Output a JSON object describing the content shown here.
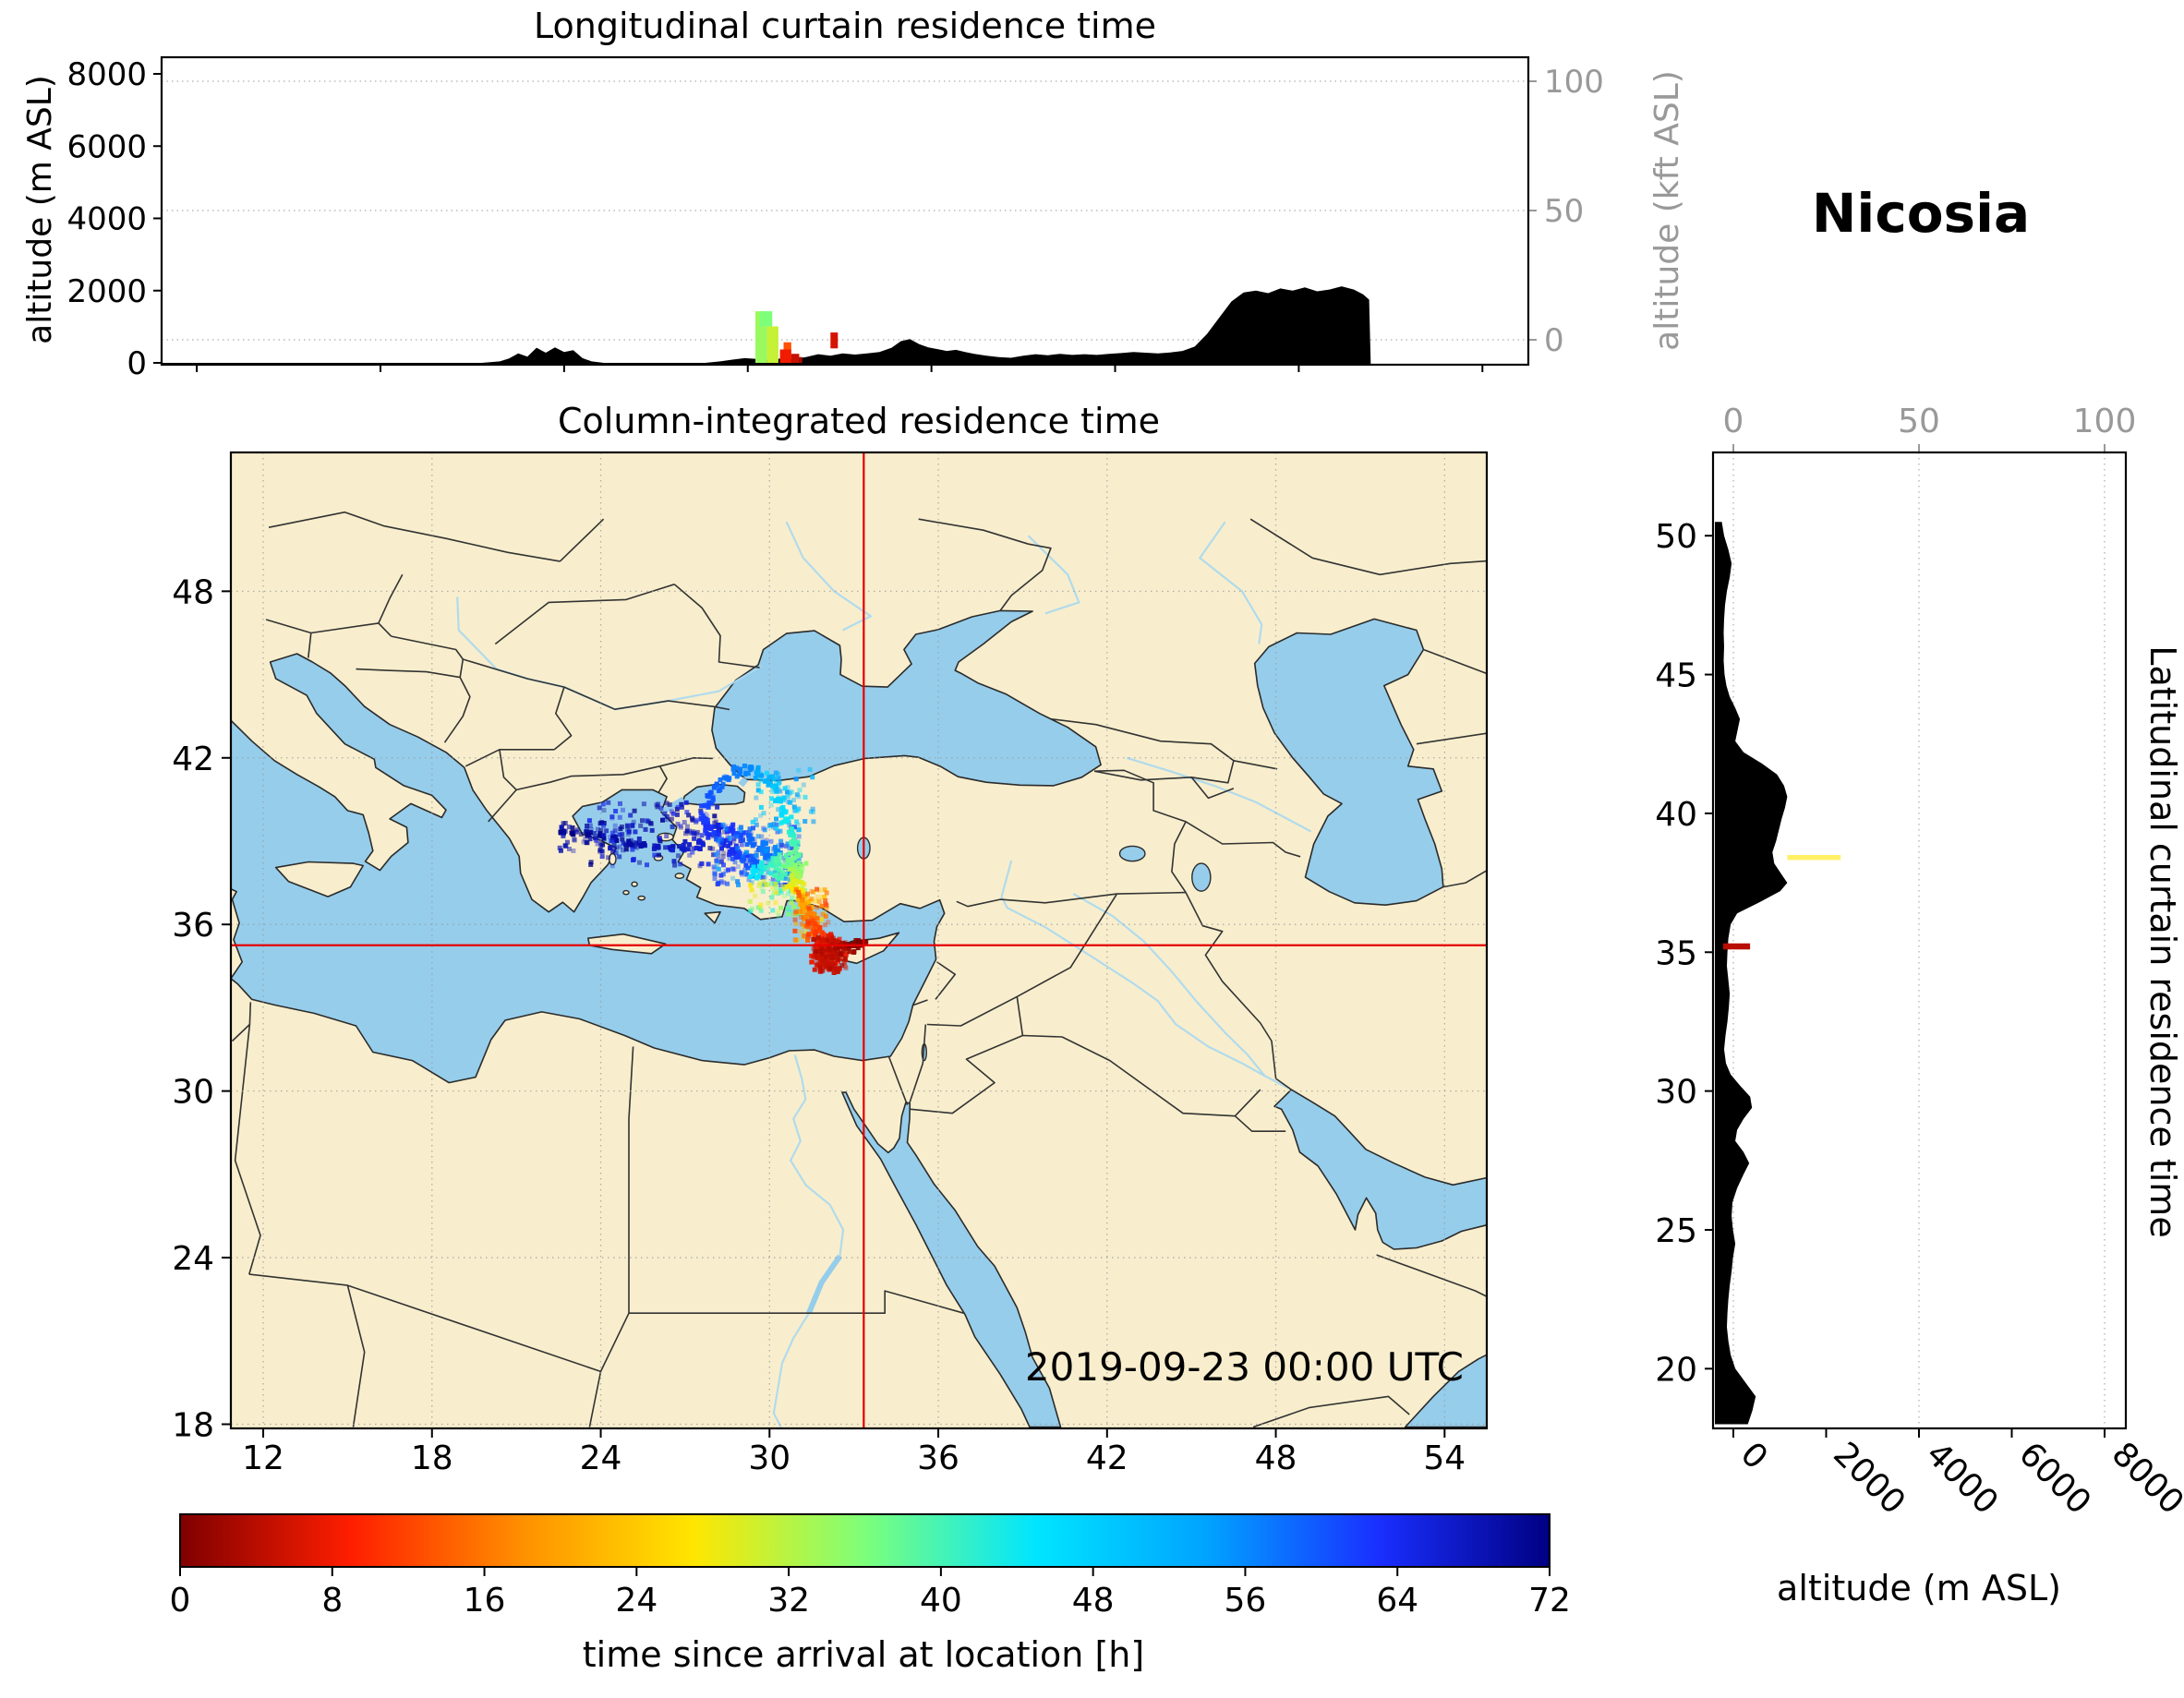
{
  "station": {
    "name": "Nicosia"
  },
  "chart_data": {
    "type": "multi-panel trajectory residence-time figure (map + longitudinal/latitudinal curtains + colorbar)",
    "timestamp": "2019-09-23 00:00 UTC",
    "receptor": {
      "name": "Nicosia",
      "lon": 33.35,
      "lat": 35.25
    },
    "colormap": {
      "label": "time since arrival at location [h]",
      "min": 0,
      "max": 72,
      "ticks": [
        0,
        8,
        16,
        24,
        32,
        40,
        48,
        56,
        64,
        72
      ],
      "stops": [
        [
          0,
          "#7f0000"
        ],
        [
          9,
          "#ff1e00"
        ],
        [
          18,
          "#ff9000"
        ],
        [
          27,
          "#ffe600"
        ],
        [
          36,
          "#7dff7a"
        ],
        [
          45,
          "#00e5ff"
        ],
        [
          54,
          "#00a3ff"
        ],
        [
          63,
          "#1a2fff"
        ],
        [
          72,
          "#000082"
        ]
      ]
    },
    "longitudinal_curtain": {
      "title": "Longitudinal curtain residence time",
      "ylabel": "altitude (m ASL)",
      "ylabel_right": "altitude (kft ASL)",
      "yticks": [
        0,
        2000,
        4000,
        6000,
        8000
      ],
      "yticks_right": [
        0,
        50,
        100
      ],
      "lon_range": [
        10.85,
        55.5
      ],
      "terrain": [
        [
          10.85,
          0
        ],
        [
          21.3,
          0
        ],
        [
          21.9,
          40
        ],
        [
          22.2,
          120
        ],
        [
          22.5,
          260
        ],
        [
          22.8,
          170
        ],
        [
          23.1,
          420
        ],
        [
          23.4,
          280
        ],
        [
          23.7,
          430
        ],
        [
          24.0,
          300
        ],
        [
          24.3,
          350
        ],
        [
          24.6,
          130
        ],
        [
          24.9,
          40
        ],
        [
          25.3,
          0
        ],
        [
          28.6,
          0
        ],
        [
          29.1,
          40
        ],
        [
          29.5,
          90
        ],
        [
          29.9,
          130
        ],
        [
          30.3,
          110
        ],
        [
          30.7,
          90
        ],
        [
          31.1,
          120
        ],
        [
          31.5,
          110
        ],
        [
          31.9,
          160
        ],
        [
          32.3,
          240
        ],
        [
          32.7,
          200
        ],
        [
          33.1,
          260
        ],
        [
          33.5,
          230
        ],
        [
          33.9,
          260
        ],
        [
          34.3,
          300
        ],
        [
          34.7,
          420
        ],
        [
          35.0,
          600
        ],
        [
          35.3,
          660
        ],
        [
          35.6,
          520
        ],
        [
          35.9,
          430
        ],
        [
          36.2,
          380
        ],
        [
          36.5,
          330
        ],
        [
          36.8,
          360
        ],
        [
          37.1,
          300
        ],
        [
          37.4,
          250
        ],
        [
          37.8,
          200
        ],
        [
          38.2,
          160
        ],
        [
          38.6,
          140
        ],
        [
          39.0,
          200
        ],
        [
          39.4,
          240
        ],
        [
          39.8,
          210
        ],
        [
          40.2,
          250
        ],
        [
          40.6,
          220
        ],
        [
          41.0,
          240
        ],
        [
          41.4,
          220
        ],
        [
          41.8,
          250
        ],
        [
          42.2,
          270
        ],
        [
          42.6,
          300
        ],
        [
          43.0,
          280
        ],
        [
          43.4,
          260
        ],
        [
          43.8,
          290
        ],
        [
          44.2,
          330
        ],
        [
          44.6,
          450
        ],
        [
          45.0,
          800
        ],
        [
          45.4,
          1250
        ],
        [
          45.8,
          1700
        ],
        [
          46.2,
          1950
        ],
        [
          46.6,
          2000
        ],
        [
          47.0,
          1930
        ],
        [
          47.4,
          2060
        ],
        [
          47.8,
          2000
        ],
        [
          48.2,
          2090
        ],
        [
          48.6,
          1980
        ],
        [
          49.0,
          2030
        ],
        [
          49.4,
          2120
        ],
        [
          49.8,
          2030
        ],
        [
          50.1,
          1900
        ],
        [
          50.3,
          1750
        ],
        [
          50.35,
          0
        ]
      ],
      "cells": [
        [
          30.25,
          30.63,
          0,
          1430,
          34
        ],
        [
          30.63,
          31.0,
          0,
          1010,
          31
        ],
        [
          30.4,
          30.8,
          1010,
          1430,
          36
        ],
        [
          31.05,
          31.42,
          0,
          370,
          8
        ],
        [
          31.42,
          31.68,
          0,
          250,
          5
        ],
        [
          31.17,
          31.42,
          370,
          570,
          13
        ],
        [
          31.68,
          31.78,
          0,
          160,
          3
        ],
        [
          32.7,
          32.94,
          400,
          840,
          6
        ]
      ]
    },
    "map": {
      "title": "Column-integrated residence time",
      "xticks": [
        12,
        18,
        24,
        30,
        36,
        42,
        48,
        54
      ],
      "yticks": [
        18,
        24,
        30,
        36,
        42,
        48
      ],
      "lon_range": [
        10.85,
        55.5
      ],
      "lat_range": [
        17.85,
        53.0
      ],
      "plume_points": [
        [
          33.3,
          35.32,
          0,
          0.15
        ],
        [
          33.05,
          35.3,
          1,
          0.18
        ],
        [
          32.8,
          35.22,
          2,
          0.2
        ],
        [
          32.55,
          35.1,
          3,
          0.24
        ],
        [
          32.3,
          34.95,
          4,
          0.28
        ],
        [
          32.05,
          34.78,
          5,
          0.32
        ],
        [
          31.9,
          34.55,
          6,
          0.3
        ],
        [
          32.25,
          34.5,
          5,
          0.24
        ],
        [
          32.0,
          35.05,
          7,
          0.3
        ],
        [
          31.78,
          34.85,
          8,
          0.3
        ],
        [
          31.72,
          35.12,
          9,
          0.26
        ],
        [
          31.9,
          35.35,
          8,
          0.22
        ],
        [
          32.1,
          35.52,
          7,
          0.18
        ],
        [
          32.35,
          35.35,
          5,
          0.16
        ],
        [
          31.66,
          35.6,
          11,
          0.22
        ],
        [
          31.56,
          35.85,
          13,
          0.2
        ],
        [
          31.47,
          36.1,
          15,
          0.2
        ],
        [
          31.38,
          36.35,
          17,
          0.19
        ],
        [
          31.28,
          36.6,
          20,
          0.19
        ],
        [
          31.18,
          36.82,
          22,
          0.18
        ],
        [
          31.08,
          37.02,
          24,
          0.18
        ],
        [
          30.98,
          37.22,
          27,
          0.18
        ],
        [
          30.88,
          37.42,
          29,
          0.19
        ],
        [
          30.78,
          37.62,
          31,
          0.2
        ],
        [
          30.88,
          37.82,
          33,
          0.22
        ],
        [
          31.08,
          38.0,
          35,
          0.24
        ],
        [
          30.78,
          38.16,
          37,
          0.27
        ],
        [
          30.44,
          38.22,
          39,
          0.27
        ],
        [
          30.1,
          38.12,
          41,
          0.25
        ],
        [
          29.82,
          37.97,
          43,
          0.23
        ],
        [
          30.32,
          37.8,
          40,
          0.2
        ],
        [
          29.56,
          37.87,
          45,
          0.2
        ],
        [
          30.92,
          38.52,
          38,
          0.18
        ],
        [
          30.86,
          38.92,
          40,
          0.16
        ],
        [
          30.76,
          39.32,
          42,
          0.16
        ],
        [
          30.62,
          39.72,
          44,
          0.16
        ],
        [
          30.47,
          40.1,
          46,
          0.16
        ],
        [
          30.32,
          40.5,
          48,
          0.16
        ],
        [
          30.16,
          40.86,
          50,
          0.16
        ],
        [
          29.96,
          41.16,
          52,
          0.17
        ],
        [
          29.62,
          41.42,
          54,
          0.18
        ],
        [
          29.2,
          41.56,
          56,
          0.18
        ],
        [
          28.82,
          41.52,
          57,
          0.18
        ],
        [
          28.42,
          41.28,
          58,
          0.18
        ],
        [
          28.12,
          40.97,
          59,
          0.18
        ],
        [
          27.92,
          40.62,
          60,
          0.18
        ],
        [
          27.77,
          40.27,
          61,
          0.18
        ],
        [
          27.72,
          39.92,
          62,
          0.18
        ],
        [
          27.77,
          39.57,
          63,
          0.18
        ],
        [
          27.97,
          39.22,
          64,
          0.18
        ],
        [
          28.32,
          38.92,
          65,
          0.22
        ],
        [
          28.72,
          38.62,
          64,
          0.22
        ],
        [
          29.12,
          38.37,
          62,
          0.24
        ],
        [
          29.52,
          38.22,
          60,
          0.24
        ],
        [
          29.92,
          38.37,
          58,
          0.22
        ],
        [
          30.22,
          38.62,
          56,
          0.2
        ],
        [
          29.82,
          38.82,
          57,
          0.18
        ],
        [
          29.42,
          39.02,
          59,
          0.18
        ],
        [
          29.02,
          39.22,
          61,
          0.18
        ],
        [
          28.62,
          39.42,
          63,
          0.18
        ],
        [
          28.22,
          39.52,
          66,
          0.18
        ],
        [
          27.52,
          38.87,
          66,
          0.18
        ],
        [
          27.02,
          38.77,
          67,
          0.17
        ],
        [
          26.52,
          38.72,
          68,
          0.16
        ],
        [
          26.02,
          38.77,
          68,
          0.15
        ],
        [
          25.52,
          38.87,
          69,
          0.14
        ],
        [
          25.02,
          38.97,
          70,
          0.13
        ],
        [
          24.52,
          39.07,
          70,
          0.12
        ],
        [
          24.02,
          39.17,
          71,
          0.11
        ],
        [
          23.52,
          39.22,
          71,
          0.1
        ],
        [
          23.02,
          39.27,
          72,
          0.09
        ],
        [
          22.62,
          39.32,
          72,
          0.08
        ]
      ],
      "speckle_regions": [
        {
          "lon0": 23.6,
          "lon1": 28.4,
          "lat0": 38.1,
          "lat1": 40.4,
          "t0": 64,
          "t1": 72,
          "n": 150,
          "seed": 7
        },
        {
          "lon0": 29.4,
          "lon1": 31.6,
          "lat0": 39.4,
          "lat1": 41.6,
          "t0": 46,
          "t1": 56,
          "n": 70,
          "seed": 11
        },
        {
          "lon0": 28.0,
          "lon1": 31.1,
          "lat0": 37.4,
          "lat1": 39.6,
          "t0": 54,
          "t1": 66,
          "n": 180,
          "seed": 23
        },
        {
          "lon0": 30.9,
          "lon1": 32.1,
          "lat0": 35.4,
          "lat1": 37.3,
          "t0": 10,
          "t1": 27,
          "n": 90,
          "seed": 31
        },
        {
          "lon0": 31.55,
          "lon1": 32.75,
          "lat0": 34.3,
          "lat1": 35.55,
          "t0": 2,
          "t1": 9,
          "n": 110,
          "seed": 41
        },
        {
          "lon0": 22.4,
          "lon1": 25.6,
          "lat0": 38.6,
          "lat1": 39.7,
          "t0": 68,
          "t1": 72,
          "n": 60,
          "seed": 53
        },
        {
          "lon0": 29.3,
          "lon1": 31.3,
          "lat0": 36.3,
          "lat1": 37.6,
          "t0": 26,
          "t1": 44,
          "n": 70,
          "seed": 61
        }
      ]
    },
    "latitudinal_curtain": {
      "side_label": "Latitudinal curtain residence time",
      "xlabel": "altitude (m ASL)",
      "xticks": [
        0,
        2000,
        4000,
        6000,
        8000
      ],
      "xticks_top": [
        0,
        50,
        100
      ],
      "yticks": [
        20,
        25,
        30,
        35,
        40,
        45,
        50
      ],
      "terrain": [
        [
          18,
          650
        ],
        [
          18.5,
          750
        ],
        [
          19,
          820
        ],
        [
          19.5,
          600
        ],
        [
          20,
          380
        ],
        [
          20.5,
          280
        ],
        [
          21,
          230
        ],
        [
          21.5,
          200
        ],
        [
          22,
          210
        ],
        [
          22.5,
          230
        ],
        [
          23,
          260
        ],
        [
          23.5,
          300
        ],
        [
          24,
          330
        ],
        [
          24.5,
          380
        ],
        [
          25,
          330
        ],
        [
          25.5,
          300
        ],
        [
          26,
          320
        ],
        [
          26.5,
          420
        ],
        [
          27,
          560
        ],
        [
          27.4,
          680
        ],
        [
          27.8,
          560
        ],
        [
          28.2,
          380
        ],
        [
          28.6,
          420
        ],
        [
          29,
          560
        ],
        [
          29.4,
          740
        ],
        [
          29.8,
          700
        ],
        [
          30.2,
          480
        ],
        [
          30.6,
          280
        ],
        [
          31,
          180
        ],
        [
          31.5,
          140
        ],
        [
          32,
          170
        ],
        [
          32.5,
          210
        ],
        [
          33,
          240
        ],
        [
          33.5,
          260
        ],
        [
          34,
          230
        ],
        [
          34.5,
          200
        ],
        [
          35,
          210
        ],
        [
          35.5,
          230
        ],
        [
          36,
          280
        ],
        [
          36.4,
          420
        ],
        [
          36.8,
          900
        ],
        [
          37.2,
          1350
        ],
        [
          37.5,
          1500
        ],
        [
          37.8,
          1380
        ],
        [
          38.2,
          1220
        ],
        [
          38.6,
          1180
        ],
        [
          39,
          1260
        ],
        [
          39.4,
          1320
        ],
        [
          39.8,
          1380
        ],
        [
          40.2,
          1450
        ],
        [
          40.6,
          1500
        ],
        [
          41,
          1430
        ],
        [
          41.4,
          1280
        ],
        [
          41.8,
          950
        ],
        [
          42.2,
          560
        ],
        [
          42.6,
          380
        ],
        [
          43,
          430
        ],
        [
          43.4,
          480
        ],
        [
          43.8,
          380
        ],
        [
          44.2,
          260
        ],
        [
          44.6,
          190
        ],
        [
          45,
          150
        ],
        [
          45.5,
          130
        ],
        [
          46,
          140
        ],
        [
          46.5,
          130
        ],
        [
          47,
          140
        ],
        [
          47.5,
          160
        ],
        [
          48,
          200
        ],
        [
          48.5,
          260
        ],
        [
          49,
          300
        ],
        [
          49.5,
          230
        ],
        [
          50,
          140
        ],
        [
          50.5,
          90
        ]
      ],
      "marks": [
        {
          "lat0": 35.1,
          "lat1": 35.32,
          "alt0": 120,
          "alt1": 700,
          "t": 4
        },
        {
          "lat0": 38.32,
          "lat1": 38.5,
          "alt0": 1500,
          "alt1": 2650,
          "t": 27,
          "alpha": 0.6
        }
      ]
    }
  }
}
